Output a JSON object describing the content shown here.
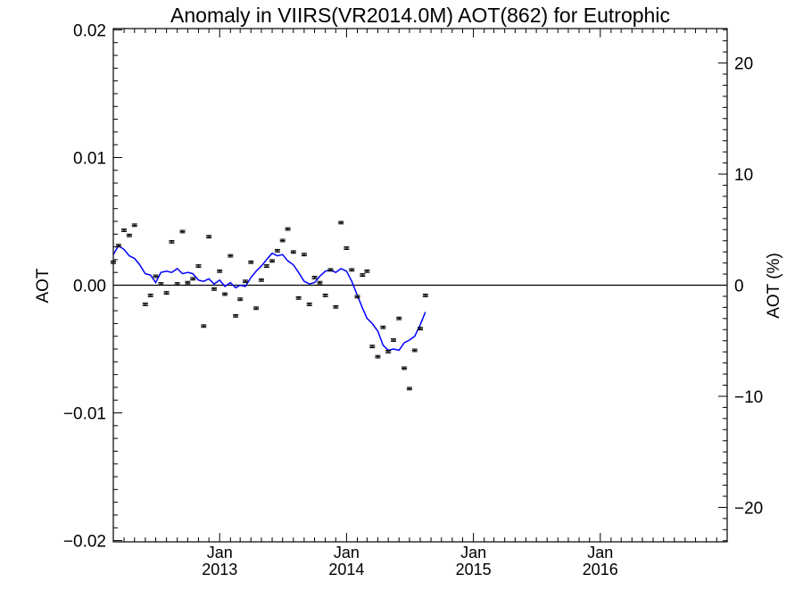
{
  "chart_data": {
    "type": "scatter",
    "title": "Anomaly in VIIRS(VR2014.0M) AOT(862) for Eutrophic",
    "ylabel": "AOT",
    "y2label": "AOT (%)",
    "xlim": [
      "2012-03-01",
      "2016-12-31"
    ],
    "ylim": [
      -0.0201,
      0.0201
    ],
    "y2lim": [
      -23.1,
      23.1
    ],
    "y_ticks": [
      {
        "value": 0.02,
        "label": "0.02"
      },
      {
        "value": 0.01,
        "label": "0.01"
      },
      {
        "value": 0.0,
        "label": "0.00"
      },
      {
        "value": -0.01,
        "label": "−0.01"
      },
      {
        "value": -0.02,
        "label": "−0.02"
      }
    ],
    "y2_ticks": [
      {
        "value": 20,
        "label": "20"
      },
      {
        "value": 10,
        "label": "10"
      },
      {
        "value": 0,
        "label": "0"
      },
      {
        "value": -10,
        "label": "−10"
      },
      {
        "value": -20,
        "label": "−20"
      }
    ],
    "x_ticks": [
      {
        "date": "2013-01-01",
        "month": "Jan",
        "year": "2013"
      },
      {
        "date": "2014-01-01",
        "month": "Jan",
        "year": "2014"
      },
      {
        "date": "2015-01-01",
        "month": "Jan",
        "year": "2015"
      },
      {
        "date": "2016-01-01",
        "month": "Jan",
        "year": "2016"
      }
    ],
    "zero_line": 0,
    "error_bar": 0.0001,
    "points": [
      {
        "x": "2012-03-01",
        "y": 0.0018
      },
      {
        "x": "2012-03-16",
        "y": 0.0031
      },
      {
        "x": "2012-04-01",
        "y": 0.0043
      },
      {
        "x": "2012-04-16",
        "y": 0.0039
      },
      {
        "x": "2012-05-01",
        "y": 0.0047
      },
      {
        "x": "2012-06-01",
        "y": -0.0015
      },
      {
        "x": "2012-06-16",
        "y": -0.0008
      },
      {
        "x": "2012-07-01",
        "y": 0.0007
      },
      {
        "x": "2012-07-16",
        "y": 0.0001
      },
      {
        "x": "2012-08-01",
        "y": -0.0006
      },
      {
        "x": "2012-08-16",
        "y": 0.0034
      },
      {
        "x": "2012-09-01",
        "y": 0.0001
      },
      {
        "x": "2012-09-16",
        "y": 0.0042
      },
      {
        "x": "2012-10-01",
        "y": 0.0002
      },
      {
        "x": "2012-10-16",
        "y": 0.0005
      },
      {
        "x": "2012-11-01",
        "y": 0.0015
      },
      {
        "x": "2012-11-16",
        "y": -0.0032
      },
      {
        "x": "2012-12-01",
        "y": 0.0038
      },
      {
        "x": "2012-12-16",
        "y": -0.0003
      },
      {
        "x": "2013-01-01",
        "y": 0.0011
      },
      {
        "x": "2013-01-16",
        "y": -0.0007
      },
      {
        "x": "2013-02-01",
        "y": 0.0023
      },
      {
        "x": "2013-02-16",
        "y": -0.0024
      },
      {
        "x": "2013-03-01",
        "y": -0.0011
      },
      {
        "x": "2013-03-16",
        "y": 0.0003
      },
      {
        "x": "2013-04-01",
        "y": 0.0018
      },
      {
        "x": "2013-04-16",
        "y": -0.0018
      },
      {
        "x": "2013-05-01",
        "y": 0.0004
      },
      {
        "x": "2013-05-16",
        "y": 0.0015
      },
      {
        "x": "2013-06-01",
        "y": 0.0019
      },
      {
        "x": "2013-06-16",
        "y": 0.0027
      },
      {
        "x": "2013-07-01",
        "y": 0.0035
      },
      {
        "x": "2013-07-16",
        "y": 0.0044
      },
      {
        "x": "2013-08-01",
        "y": 0.0026
      },
      {
        "x": "2013-08-16",
        "y": -0.001
      },
      {
        "x": "2013-09-01",
        "y": 0.0024
      },
      {
        "x": "2013-09-16",
        "y": -0.0015
      },
      {
        "x": "2013-10-01",
        "y": 0.0006
      },
      {
        "x": "2013-10-16",
        "y": 0.0002
      },
      {
        "x": "2013-11-01",
        "y": -0.0008
      },
      {
        "x": "2013-11-16",
        "y": 0.0012
      },
      {
        "x": "2013-12-01",
        "y": -0.0017
      },
      {
        "x": "2013-12-16",
        "y": 0.0049
      },
      {
        "x": "2014-01-01",
        "y": 0.0029
      },
      {
        "x": "2014-01-16",
        "y": 0.0012
      },
      {
        "x": "2014-02-01",
        "y": -0.0009
      },
      {
        "x": "2014-02-16",
        "y": 0.0008
      },
      {
        "x": "2014-03-01",
        "y": 0.0011
      },
      {
        "x": "2014-03-16",
        "y": -0.0048
      },
      {
        "x": "2014-04-01",
        "y": -0.0056
      },
      {
        "x": "2014-04-16",
        "y": -0.0033
      },
      {
        "x": "2014-05-01",
        "y": -0.0052
      },
      {
        "x": "2014-05-16",
        "y": -0.0043
      },
      {
        "x": "2014-06-01",
        "y": -0.0026
      },
      {
        "x": "2014-06-16",
        "y": -0.0065
      },
      {
        "x": "2014-07-01",
        "y": -0.0081
      },
      {
        "x": "2014-07-16",
        "y": -0.0051
      },
      {
        "x": "2014-08-01",
        "y": -0.0034
      },
      {
        "x": "2014-08-16",
        "y": -0.0008
      }
    ],
    "trend_color": "#0000ff",
    "trend": [
      {
        "x": "2012-03-01",
        "y": 0.0024
      },
      {
        "x": "2012-03-16",
        "y": 0.0031
      },
      {
        "x": "2012-04-01",
        "y": 0.0028
      },
      {
        "x": "2012-04-16",
        "y": 0.0023
      },
      {
        "x": "2012-05-01",
        "y": 0.0021
      },
      {
        "x": "2012-05-16",
        "y": 0.0016
      },
      {
        "x": "2012-06-01",
        "y": 0.0009
      },
      {
        "x": "2012-06-16",
        "y": 0.0008
      },
      {
        "x": "2012-07-01",
        "y": 0.0002
      },
      {
        "x": "2012-07-16",
        "y": 0.001
      },
      {
        "x": "2012-08-01",
        "y": 0.0011
      },
      {
        "x": "2012-08-16",
        "y": 0.001
      },
      {
        "x": "2012-09-01",
        "y": 0.0013
      },
      {
        "x": "2012-09-16",
        "y": 0.0009
      },
      {
        "x": "2012-10-01",
        "y": 0.001
      },
      {
        "x": "2012-10-16",
        "y": 0.0009
      },
      {
        "x": "2012-11-01",
        "y": 0.0004
      },
      {
        "x": "2012-11-16",
        "y": 0.0003
      },
      {
        "x": "2012-12-01",
        "y": 0.0005
      },
      {
        "x": "2012-12-16",
        "y": 0.0001
      },
      {
        "x": "2013-01-01",
        "y": 0.0004
      },
      {
        "x": "2013-01-16",
        "y": -0.0001
      },
      {
        "x": "2013-02-01",
        "y": 0.0002
      },
      {
        "x": "2013-02-16",
        "y": -0.0002
      },
      {
        "x": "2013-03-01",
        "y": 0.0
      },
      {
        "x": "2013-03-16",
        "y": -0.0001
      },
      {
        "x": "2013-04-01",
        "y": 0.0006
      },
      {
        "x": "2013-04-16",
        "y": 0.0011
      },
      {
        "x": "2013-05-01",
        "y": 0.0015
      },
      {
        "x": "2013-05-16",
        "y": 0.002
      },
      {
        "x": "2013-06-01",
        "y": 0.0025
      },
      {
        "x": "2013-06-16",
        "y": 0.0023
      },
      {
        "x": "2013-07-01",
        "y": 0.0024
      },
      {
        "x": "2013-07-16",
        "y": 0.0019
      },
      {
        "x": "2013-08-01",
        "y": 0.0016
      },
      {
        "x": "2013-08-16",
        "y": 0.001
      },
      {
        "x": "2013-09-01",
        "y": 0.0003
      },
      {
        "x": "2013-09-16",
        "y": 0.0001
      },
      {
        "x": "2013-10-01",
        "y": 0.0002
      },
      {
        "x": "2013-10-16",
        "y": 0.0007
      },
      {
        "x": "2013-11-01",
        "y": 0.0011
      },
      {
        "x": "2013-11-16",
        "y": 0.0012
      },
      {
        "x": "2013-12-01",
        "y": 0.001
      },
      {
        "x": "2013-12-16",
        "y": 0.0013
      },
      {
        "x": "2014-01-01",
        "y": 0.0011
      },
      {
        "x": "2014-01-16",
        "y": 0.0003
      },
      {
        "x": "2014-02-01",
        "y": -0.0008
      },
      {
        "x": "2014-02-16",
        "y": -0.0018
      },
      {
        "x": "2014-03-01",
        "y": -0.0026
      },
      {
        "x": "2014-03-16",
        "y": -0.003
      },
      {
        "x": "2014-04-01",
        "y": -0.0036
      },
      {
        "x": "2014-04-16",
        "y": -0.0047
      },
      {
        "x": "2014-05-01",
        "y": -0.0051
      },
      {
        "x": "2014-05-16",
        "y": -0.005
      },
      {
        "x": "2014-06-01",
        "y": -0.0051
      },
      {
        "x": "2014-06-16",
        "y": -0.0045
      },
      {
        "x": "2014-07-01",
        "y": -0.0043
      },
      {
        "x": "2014-07-16",
        "y": -0.004
      },
      {
        "x": "2014-08-01",
        "y": -0.0031
      },
      {
        "x": "2014-08-16",
        "y": -0.0021
      }
    ]
  }
}
